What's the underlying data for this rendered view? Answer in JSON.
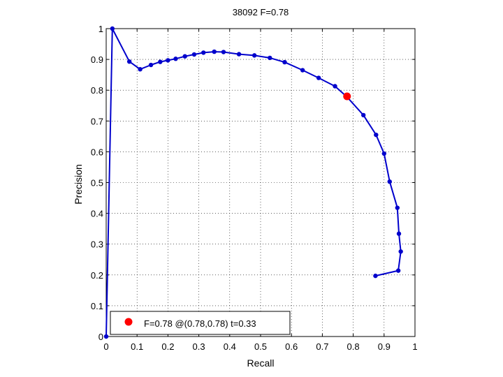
{
  "chart_data": {
    "type": "line",
    "title": "38092 F=0.78",
    "xlabel": "Recall",
    "ylabel": "Precision",
    "xlim": [
      0,
      1
    ],
    "ylim": [
      0,
      1
    ],
    "grid": true,
    "xticks": [
      "0",
      "0.1",
      "0.2",
      "0.3",
      "0.4",
      "0.5",
      "0.6",
      "0.7",
      "0.8",
      "0.9",
      "1"
    ],
    "yticks": [
      "0",
      "0.1",
      "0.2",
      "0.3",
      "0.4",
      "0.5",
      "0.6",
      "0.7",
      "0.8",
      "0.9",
      "1"
    ],
    "series": [
      {
        "color": "#0000cc",
        "points": [
          [
            0.0,
            0.0
          ],
          [
            0.02,
            1.0
          ],
          [
            0.075,
            0.893
          ],
          [
            0.11,
            0.868
          ],
          [
            0.145,
            0.882
          ],
          [
            0.175,
            0.892
          ],
          [
            0.2,
            0.897
          ],
          [
            0.225,
            0.902
          ],
          [
            0.255,
            0.91
          ],
          [
            0.285,
            0.916
          ],
          [
            0.315,
            0.922
          ],
          [
            0.35,
            0.925
          ],
          [
            0.38,
            0.924
          ],
          [
            0.43,
            0.917
          ],
          [
            0.48,
            0.913
          ],
          [
            0.53,
            0.905
          ],
          [
            0.578,
            0.891
          ],
          [
            0.636,
            0.865
          ],
          [
            0.688,
            0.84
          ],
          [
            0.741,
            0.813
          ],
          [
            0.78,
            0.778
          ],
          [
            0.833,
            0.719
          ],
          [
            0.874,
            0.655
          ],
          [
            0.9,
            0.594
          ],
          [
            0.918,
            0.503
          ],
          [
            0.943,
            0.418
          ],
          [
            0.948,
            0.334
          ],
          [
            0.954,
            0.276
          ],
          [
            0.946,
            0.214
          ],
          [
            0.872,
            0.197
          ]
        ]
      }
    ],
    "highlight": {
      "x": 0.78,
      "y": 0.78,
      "color": "#ff0000"
    },
    "legend": {
      "position": "bottom-left",
      "label": "F=0.78 @(0.78,0.78) t=0.33"
    }
  }
}
